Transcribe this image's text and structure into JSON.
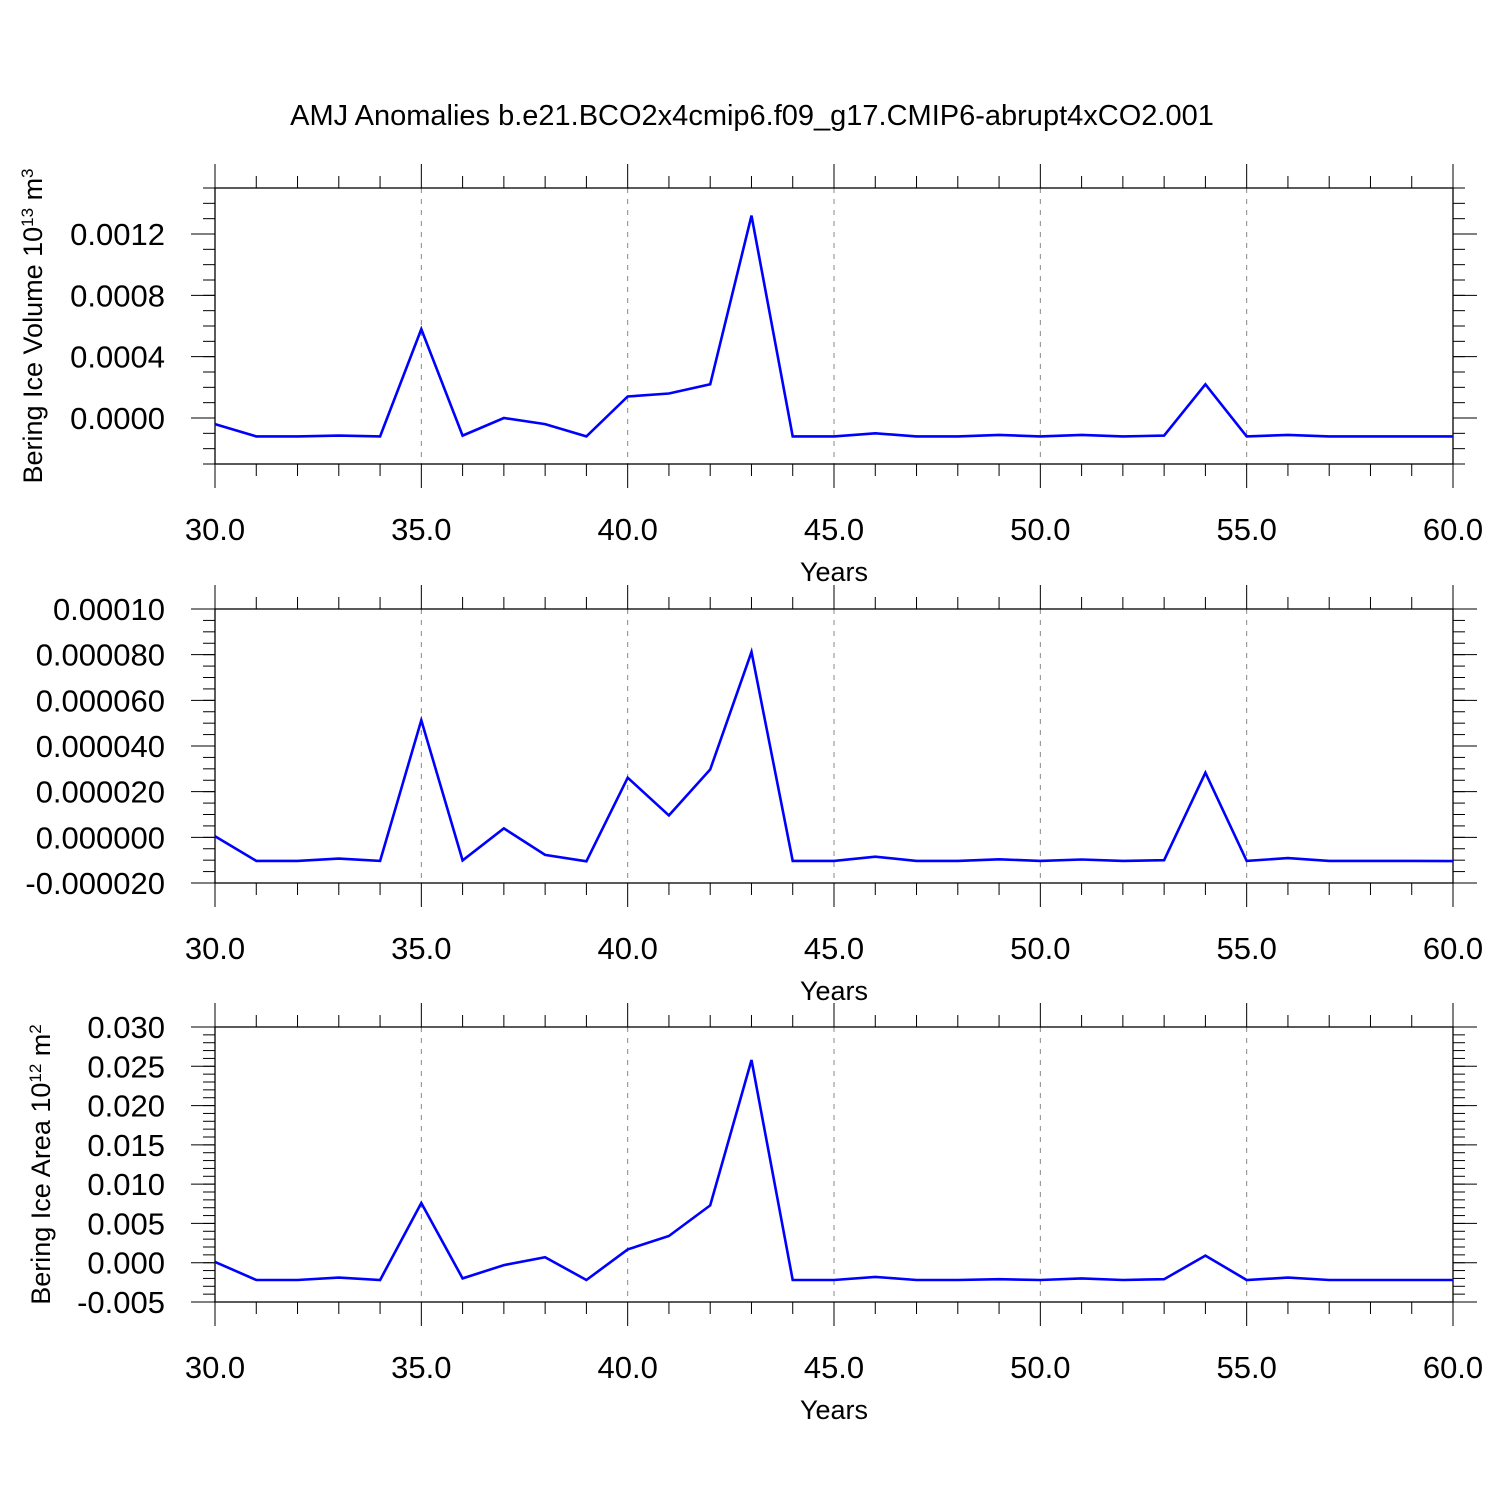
{
  "title": "AMJ Anomalies b.e21.BCO2x4cmip6.f09_g17.CMIP6-abrupt4xCO2.001",
  "colors": {
    "series": "#0000ff",
    "axis": "#000000",
    "grid": "#888888"
  },
  "chart_data": [
    {
      "type": "line",
      "ylabel": "Bering Ice Volume 10",
      "ylabel_sup": "13",
      "ylabel_unit": " m",
      "ylabel_unit_sup": "3",
      "xlabel": "Years",
      "xlim": [
        30,
        60
      ],
      "ylim": [
        -0.0003,
        0.0015
      ],
      "xticks": [
        30,
        35,
        40,
        45,
        50,
        55,
        60
      ],
      "xtick_labels": [
        "30.0",
        "35.0",
        "40.0",
        "45.0",
        "50.0",
        "55.0",
        "60.0"
      ],
      "yticks": [
        0,
        0.0004,
        0.0008,
        0.0012
      ],
      "ytick_labels": [
        "0.0000",
        "0.0004",
        "0.0008",
        "0.0012"
      ],
      "x": [
        30,
        31,
        32,
        33,
        34,
        35,
        36,
        37,
        38,
        39,
        40,
        41,
        42,
        43,
        44,
        45,
        46,
        47,
        48,
        49,
        50,
        51,
        52,
        53,
        54,
        55,
        56,
        57,
        58,
        59,
        60
      ],
      "values": [
        -4e-05,
        -0.00012,
        -0.00012,
        -0.000115,
        -0.00012,
        0.00058,
        -0.000115,
        0.0,
        -4e-05,
        -0.00012,
        0.00014,
        0.00016,
        0.00022,
        0.00132,
        -0.00012,
        -0.00012,
        -0.0001,
        -0.00012,
        -0.00012,
        -0.00011,
        -0.00012,
        -0.00011,
        -0.00012,
        -0.000115,
        0.00022,
        -0.00012,
        -0.00011,
        -0.00012,
        -0.00012,
        -0.00012,
        -0.00012
      ]
    },
    {
      "type": "line",
      "ylabel": "",
      "xlabel": "Years",
      "xlim": [
        30,
        60
      ],
      "ylim": [
        -2e-05,
        0.0001
      ],
      "xticks": [
        30,
        35,
        40,
        45,
        50,
        55,
        60
      ],
      "xtick_labels": [
        "30.0",
        "35.0",
        "40.0",
        "45.0",
        "50.0",
        "55.0",
        "60.0"
      ],
      "yticks": [
        -2e-05,
        0,
        2e-05,
        4e-05,
        6e-05,
        8e-05,
        0.0001
      ],
      "ytick_labels": [
        "-0.000020",
        "0.000000",
        "0.000020",
        "0.000040",
        "0.000060",
        "0.000080",
        "0.00010"
      ],
      "x": [
        30,
        31,
        32,
        33,
        34,
        35,
        36,
        37,
        38,
        39,
        40,
        41,
        42,
        43,
        44,
        45,
        46,
        47,
        48,
        49,
        50,
        51,
        52,
        53,
        54,
        55,
        56,
        57,
        58,
        59,
        60
      ],
      "values": [
        5e-07,
        -1.03e-05,
        -1.03e-05,
        -9.3e-06,
        -1.03e-05,
        5.13e-05,
        -1.01e-05,
        3.9e-06,
        -7.7e-06,
        -1.05e-05,
        2.61e-05,
        9.6e-06,
        2.97e-05,
        8.12e-05,
        -1.03e-05,
        -1.03e-05,
        -8.5e-06,
        -1.03e-05,
        -1.03e-05,
        -9.6e-06,
        -1.03e-05,
        -9.7e-06,
        -1.03e-05,
        -1e-05,
        2.83e-05,
        -1.03e-05,
        -9.1e-06,
        -1.03e-05,
        -1.03e-05,
        -1.03e-05,
        -1.04e-05
      ]
    },
    {
      "type": "line",
      "ylabel": "Bering Ice Area 10",
      "ylabel_sup": "12",
      "ylabel_unit": " m",
      "ylabel_unit_sup": "2",
      "xlabel": "Years",
      "xlim": [
        30,
        60
      ],
      "ylim": [
        -0.005,
        0.03
      ],
      "xticks": [
        30,
        35,
        40,
        45,
        50,
        55,
        60
      ],
      "xtick_labels": [
        "30.0",
        "35.0",
        "40.0",
        "45.0",
        "50.0",
        "55.0",
        "60.0"
      ],
      "yticks": [
        -0.005,
        0,
        0.005,
        0.01,
        0.015,
        0.02,
        0.025,
        0.03
      ],
      "ytick_labels": [
        "-0.005",
        "0.000",
        "0.005",
        "0.010",
        "0.015",
        "0.020",
        "0.025",
        "0.030"
      ],
      "x": [
        30,
        31,
        32,
        33,
        34,
        35,
        36,
        37,
        38,
        39,
        40,
        41,
        42,
        43,
        44,
        45,
        46,
        47,
        48,
        49,
        50,
        51,
        52,
        53,
        54,
        55,
        56,
        57,
        58,
        59,
        60
      ],
      "values": [
        0.0001,
        -0.0022,
        -0.0022,
        -0.0019,
        -0.0022,
        0.0076,
        -0.002,
        -0.0003,
        0.0007,
        -0.0022,
        0.0017,
        0.0034,
        0.0073,
        0.0258,
        -0.0022,
        -0.0022,
        -0.0018,
        -0.0022,
        -0.0022,
        -0.0021,
        -0.0022,
        -0.002,
        -0.0022,
        -0.0021,
        0.0009,
        -0.0022,
        -0.0019,
        -0.0022,
        -0.0022,
        -0.0022,
        -0.0022
      ]
    }
  ]
}
